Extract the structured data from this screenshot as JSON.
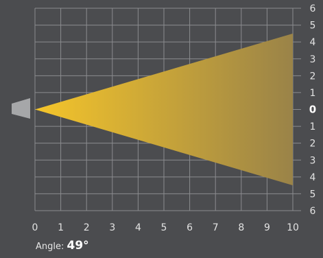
{
  "diagram": {
    "x_ticks": [
      "0",
      "1",
      "2",
      "3",
      "4",
      "5",
      "6",
      "7",
      "8",
      "9",
      "10"
    ],
    "y_ticks_right": [
      "6",
      "5",
      "4",
      "3",
      "2",
      "1",
      "0",
      "1",
      "2",
      "3",
      "4",
      "5",
      "6"
    ],
    "beam": {
      "angle_deg": 49,
      "half_height_at_10": 4.5,
      "x_min": 0,
      "x_max": 10,
      "y_range": [
        -6,
        6
      ]
    }
  },
  "caption": {
    "label": "Angle:",
    "value": "49°"
  },
  "colors": {
    "background": "#4b4c4f",
    "grid": "#8b8c8f",
    "beam_start": "#f5c52a",
    "beam_end": "#9a8348",
    "source": "#a6a7a9",
    "tick_text": "#e3e3e3",
    "zero_label": "#ffffff"
  }
}
